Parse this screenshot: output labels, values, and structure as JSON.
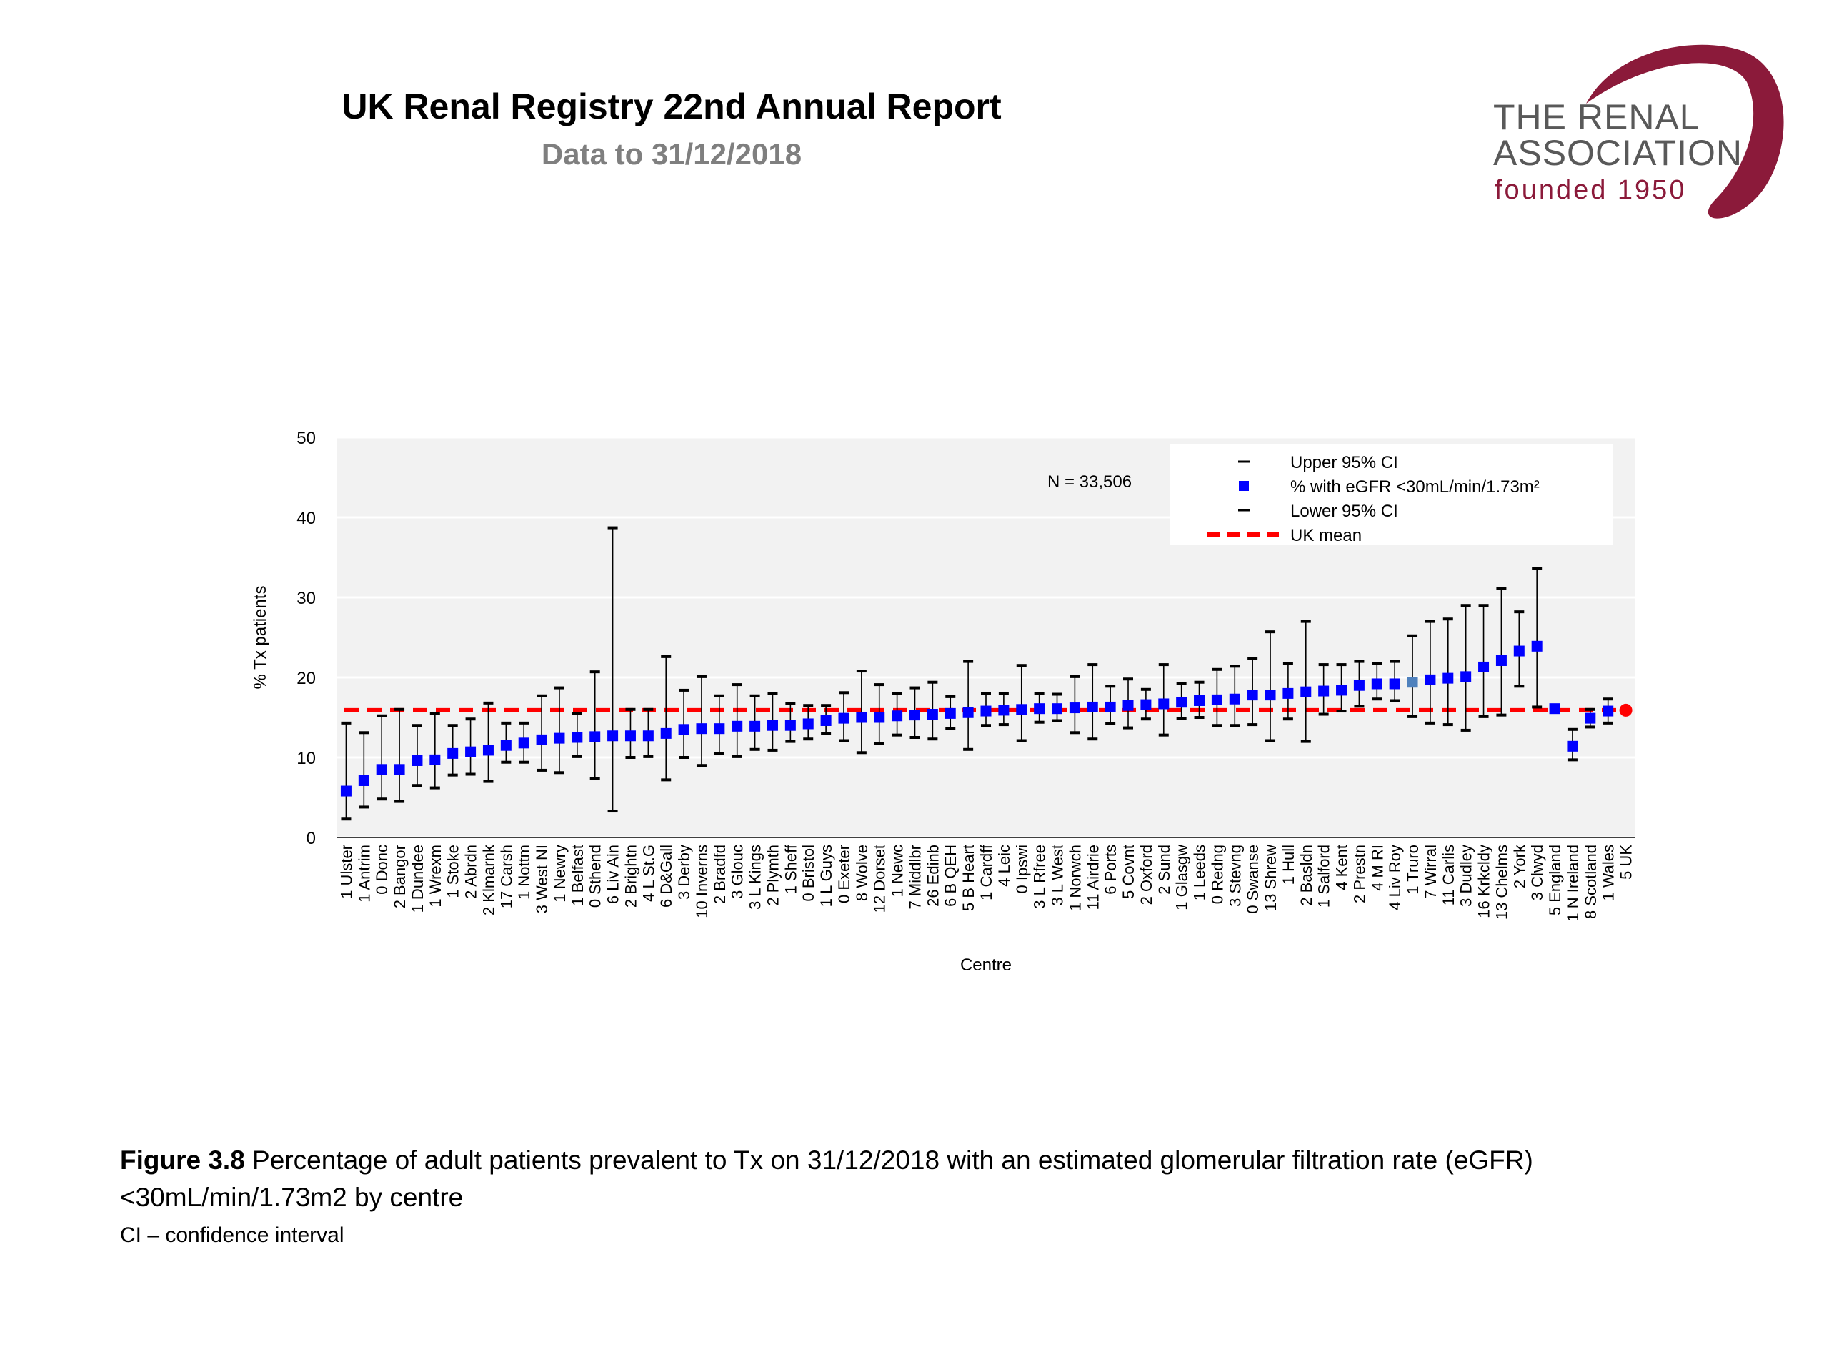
{
  "header": {
    "title": "UK Renal Registry 22nd Annual Report",
    "subtitle": "Data to 31/12/2018"
  },
  "logo": {
    "line1": "THE RENAL",
    "line2": "ASSOCIATION",
    "line3": "founded 1950"
  },
  "colors": {
    "point": "#0000ff",
    "point_highlight": "#4f81bd",
    "uk_mean": "#ff0000",
    "plot_bg": "#f2f2f2",
    "logo_accent": "#8b1a3a"
  },
  "chart_data": {
    "type": "scatter",
    "annotation": "N = 33,506",
    "xlabel": "Centre",
    "ylabel": "% Tx patients",
    "ylim": [
      0,
      50
    ],
    "yticks": [
      0,
      10,
      20,
      30,
      40,
      50
    ],
    "grid": true,
    "legend_position": "top-right",
    "legend": [
      {
        "label": "Upper 95% CI",
        "marker": "dash"
      },
      {
        "label": "% with eGFR <30mL/min/1.73m²",
        "marker": "square"
      },
      {
        "label": "Lower 95% CI",
        "marker": "dash"
      },
      {
        "label": "UK mean",
        "marker": "dashed-line"
      }
    ],
    "uk_mean": 15.9,
    "categories": [
      "1 Ulster",
      "1 Antrim",
      "0 Donc",
      "2 Bangor",
      "1 Dundee",
      "1 Wrexm",
      "1 Stoke",
      "2 Abrdn",
      "2 Klmarnk",
      "17 Carsh",
      "1 Nottm",
      "3 West NI",
      "1 Newry",
      "1 Belfast",
      "0 Sthend",
      "6 Liv Ain",
      "2 Brightn",
      "4 L St.G",
      "6 D&Gall",
      "3 Derby",
      "10 Inverns",
      "2 Bradfd",
      "3 Glouc",
      "3 L Kings",
      "2 Plymth",
      "1 Sheff",
      "0 Bristol",
      "1 L Guys",
      "0 Exeter",
      "8 Wolve",
      "12 Dorset",
      "1 Newc",
      "7 Middlbr",
      "26 Edinb",
      "6 B QEH",
      "5 B Heart",
      "1 Cardff",
      "4 Leic",
      "0 Ipswi",
      "3 L Rfree",
      "3 L West",
      "1 Norwch",
      "11 Airdrie",
      "6 Ports",
      "5 Covnt",
      "2 Oxford",
      "2 Sund",
      "1 Glasgw",
      "1 Leeds",
      "0 Redng",
      "3 Stevng",
      "0 Swanse",
      "13 Shrew",
      "1 Hull",
      "2 Basldn",
      "1 Salford",
      "4 Kent",
      "2 Prestn",
      "4 M RI",
      "4 Liv Roy",
      "1 Truro",
      "7 Wirral",
      "11 Carlis",
      "3 Dudley",
      "16 Krkcldy",
      "13 Chelms",
      "2 York",
      "3 Clwyd",
      "5 England",
      "1 N Ireland",
      "8 Scotland",
      "1 Wales",
      "5 UK"
    ],
    "values": [
      5.8,
      7.1,
      8.5,
      8.5,
      9.6,
      9.7,
      10.5,
      10.7,
      10.9,
      11.5,
      11.8,
      12.2,
      12.4,
      12.5,
      12.6,
      12.7,
      12.7,
      12.7,
      13.0,
      13.5,
      13.6,
      13.6,
      13.9,
      13.9,
      14.0,
      14.0,
      14.2,
      14.6,
      14.9,
      15.0,
      15.0,
      15.2,
      15.3,
      15.4,
      15.5,
      15.6,
      15.8,
      15.9,
      16.0,
      16.1,
      16.1,
      16.2,
      16.3,
      16.3,
      16.5,
      16.6,
      16.7,
      16.9,
      17.1,
      17.2,
      17.3,
      17.8,
      17.8,
      18.0,
      18.2,
      18.3,
      18.4,
      19.0,
      19.2,
      19.2,
      19.4,
      19.7,
      19.9,
      20.1,
      21.3,
      22.1,
      23.3,
      23.9,
      16.1,
      11.4,
      14.9,
      15.8,
      15.9
    ],
    "upper": [
      14.3,
      13.1,
      15.2,
      16.0,
      14.0,
      15.5,
      14.0,
      14.8,
      16.8,
      14.3,
      14.3,
      17.7,
      18.7,
      15.5,
      20.7,
      38.7,
      16.0,
      16.0,
      22.6,
      18.4,
      20.1,
      17.7,
      19.1,
      17.7,
      18.0,
      16.7,
      16.5,
      16.5,
      18.1,
      20.8,
      19.1,
      18.0,
      18.7,
      19.4,
      17.6,
      22.0,
      18.0,
      18.0,
      21.5,
      18.0,
      17.9,
      20.1,
      21.6,
      18.9,
      19.8,
      18.5,
      21.6,
      19.2,
      19.4,
      21.0,
      21.4,
      22.4,
      25.7,
      21.7,
      27.0,
      21.6,
      21.6,
      22.0,
      21.7,
      22.0,
      25.2,
      27.0,
      27.3,
      29.0,
      29.0,
      31.1,
      28.2,
      33.6,
      16.4,
      13.5,
      16.0,
      17.3,
      16.0
    ],
    "lower": [
      2.3,
      3.8,
      4.8,
      4.5,
      6.5,
      6.2,
      7.8,
      7.9,
      7.0,
      9.4,
      9.4,
      8.4,
      8.1,
      10.1,
      7.4,
      3.3,
      10.0,
      10.1,
      7.2,
      10.0,
      9.0,
      10.5,
      10.1,
      11.0,
      10.9,
      12.0,
      12.3,
      13.0,
      12.1,
      10.6,
      11.7,
      12.8,
      12.5,
      12.3,
      13.6,
      11.0,
      14.0,
      14.1,
      12.1,
      14.4,
      14.6,
      13.1,
      12.3,
      14.2,
      13.7,
      14.8,
      12.8,
      14.9,
      15.0,
      14.0,
      14.0,
      14.1,
      12.1,
      14.8,
      12.0,
      15.4,
      15.8,
      16.4,
      17.3,
      17.1,
      15.1,
      14.3,
      14.1,
      13.4,
      15.1,
      15.3,
      18.9,
      16.3,
      15.8,
      9.7,
      13.8,
      14.3,
      15.7
    ],
    "highlight": [
      60,
      72
    ]
  },
  "caption": {
    "figure_label": "Figure 3.8",
    "text": " Percentage of adult patients prevalent to Tx on 31/12/2018 with an estimated glomerular filtration rate (eGFR) <30mL/min/1.73m2 by centre",
    "note": "CI – confidence interval"
  }
}
